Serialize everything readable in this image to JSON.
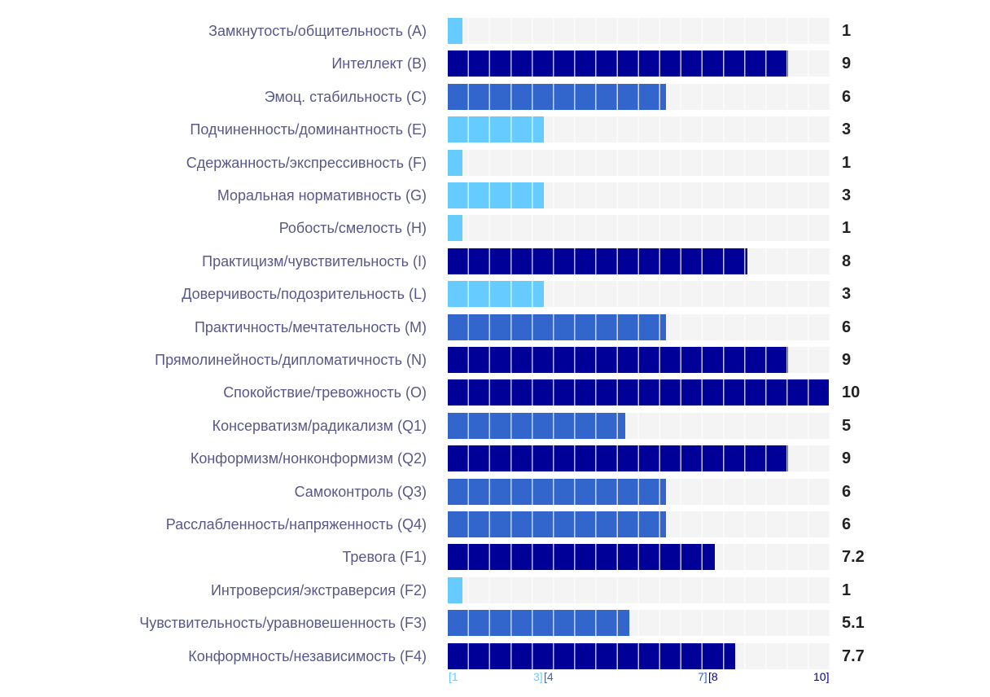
{
  "chart_data": {
    "type": "bar",
    "orientation": "horizontal",
    "categories": [
      "Замкнутость/общительность (A)",
      "Интеллект (B)",
      "Эмоц. стабильность (C)",
      "Подчиненность/доминантность (E)",
      "Сдержанность/экспрессивность (F)",
      "Моральная нормативность (G)",
      "Робость/смелость (H)",
      "Практицизм/чувствительность (I)",
      "Доверчивость/подозрительность (L)",
      "Практичность/мечтательность (M)",
      "Прямолинейность/дипломатичность (N)",
      "Спокойствие/тревожность (O)",
      "Консерватизм/радикализм (Q1)",
      "Конформизм/нонконформизм (Q2)",
      "Самоконтроль (Q3)",
      "Расслабленность/напряженность (Q4)",
      "Тревога (F1)",
      "Интроверсия/экстраверсия (F2)",
      "Чувствительность/уравновешенность (F3)",
      "Конформность/независимость (F4)"
    ],
    "values": [
      1,
      9,
      6,
      3,
      1,
      3,
      1,
      8,
      3,
      6,
      9,
      10,
      5,
      9,
      6,
      6,
      7.2,
      1,
      5.1,
      7.7
    ],
    "value_labels": [
      "1",
      "9",
      "6",
      "3",
      "1",
      "3",
      "1",
      "8",
      "3",
      "6",
      "9",
      "10",
      "5",
      "9",
      "6",
      "6",
      "7.2",
      "1",
      "5.1",
      "7.7"
    ],
    "xlim": [
      0,
      10
    ],
    "ranges": [
      {
        "label_start": "[1",
        "label_end": "3]",
        "min": 1,
        "max": 3,
        "color": "#66ccff"
      },
      {
        "label_start": "[4",
        "label_end": "7]",
        "min": 4,
        "max": 7,
        "color": "#3366cc"
      },
      {
        "label_start": "[8",
        "label_end": "10]",
        "min": 8,
        "max": 10,
        "color": "#000099"
      }
    ],
    "title": "",
    "xlabel": "",
    "ylabel": ""
  }
}
